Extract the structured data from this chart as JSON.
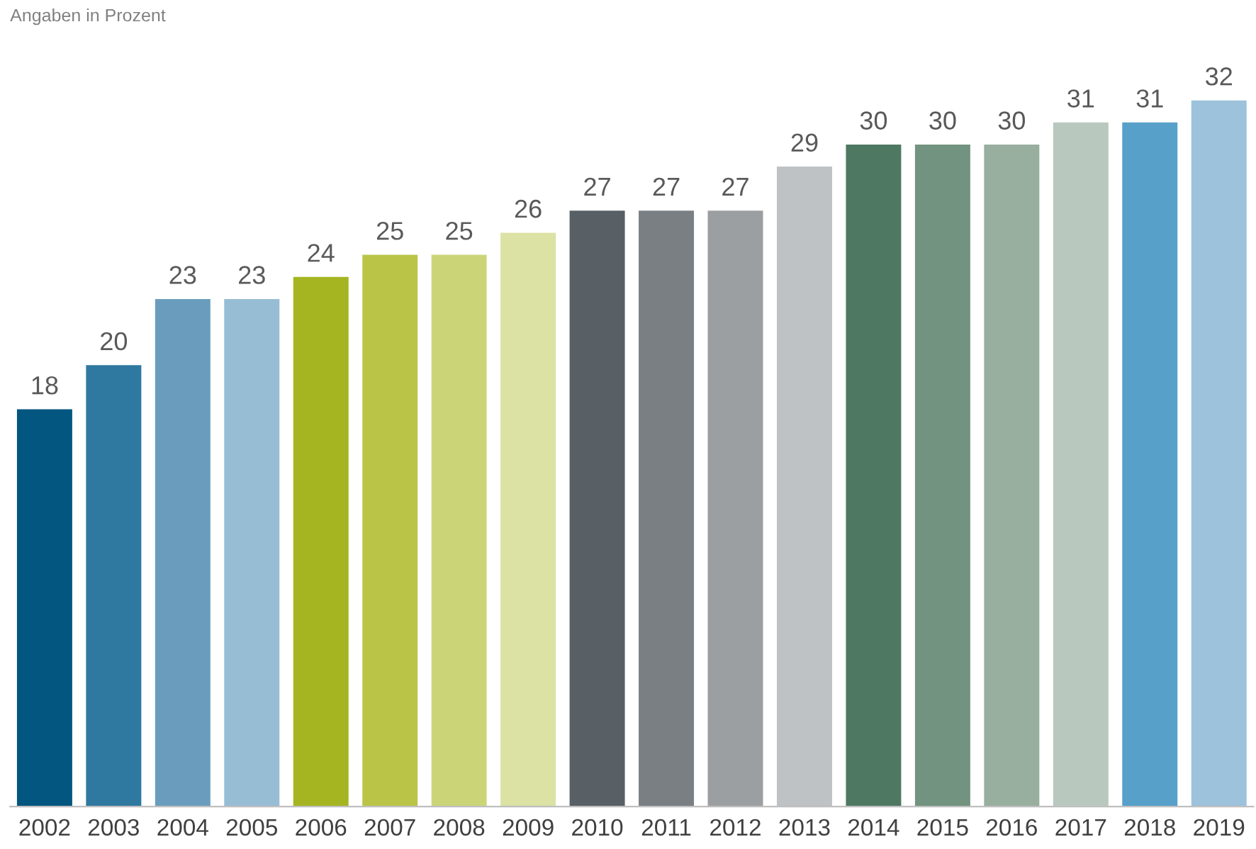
{
  "chart_data": {
    "type": "bar",
    "subtitle": "Angaben in Prozent",
    "categories": [
      "2002",
      "2003",
      "2004",
      "2005",
      "2006",
      "2007",
      "2008",
      "2009",
      "2010",
      "2011",
      "2012",
      "2013",
      "2014",
      "2015",
      "2016",
      "2017",
      "2018",
      "2019"
    ],
    "values": [
      18,
      20,
      23,
      23,
      24,
      25,
      25,
      26,
      27,
      27,
      27,
      29,
      30,
      30,
      30,
      31,
      31,
      32
    ],
    "colors": [
      "#02567f",
      "#2f78a0",
      "#6a9dbd",
      "#97bdd4",
      "#a5b521",
      "#bac548",
      "#cbd578",
      "#dbe2a3",
      "#585f65",
      "#7a7f84",
      "#9c9fa2",
      "#bec2c5",
      "#4e7862",
      "#72937f",
      "#98ae9f",
      "#b9c8bf",
      "#56a0c9",
      "#9cc2dc"
    ],
    "data_labels": true,
    "grid": false
  }
}
